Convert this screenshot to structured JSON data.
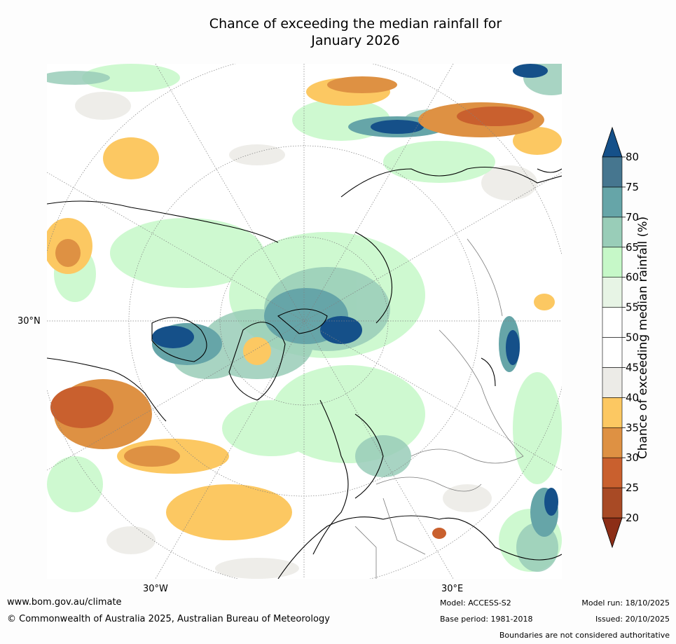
{
  "title": {
    "line1": "Chance of exceeding the median rainfall for",
    "line2": "January 2026"
  },
  "axis_labels": {
    "lat": "30°N",
    "lon_west": "30°W",
    "lon_east": "30°E"
  },
  "colorbar": {
    "label": "Chance of exceeding median rainfall (%)",
    "ticks": [
      "20",
      "25",
      "30",
      "35",
      "40",
      "45",
      "50",
      "55",
      "60",
      "65",
      "70",
      "75",
      "80"
    ],
    "bins": [
      {
        "from": 20,
        "to": 25,
        "color": "#a84a25"
      },
      {
        "from": 25,
        "to": 30,
        "color": "#c9602e"
      },
      {
        "from": 30,
        "to": 35,
        "color": "#de9143"
      },
      {
        "from": 35,
        "to": 40,
        "color": "#fcc862"
      },
      {
        "from": 40,
        "to": 45,
        "color": "#ecebe7"
      },
      {
        "from": 45,
        "to": 50,
        "color": "#ffffff"
      },
      {
        "from": 50,
        "to": 55,
        "color": "#ffffff"
      },
      {
        "from": 55,
        "to": 60,
        "color": "#e7f4e5"
      },
      {
        "from": 60,
        "to": 65,
        "color": "#c6f8c8"
      },
      {
        "from": 65,
        "to": 70,
        "color": "#99cdb8"
      },
      {
        "from": 70,
        "to": 75,
        "color": "#66a5a8"
      },
      {
        "from": 75,
        "to": 80,
        "color": "#46768f"
      }
    ],
    "under_color": "#8c2e17",
    "over_color": "#155089"
  },
  "footer": {
    "url": "www.bom.gov.au/climate",
    "copyright": "© Commonwealth of Australia 2025, Australian Bureau of Meteorology",
    "model": "Model: ACCESS-S2",
    "base_period": "Base period: 1981-2018",
    "model_run": "Model run: 18/10/2025",
    "issued": "Issued: 20/10/2025",
    "disclaimer": "Boundaries are not considered authoritative"
  }
}
